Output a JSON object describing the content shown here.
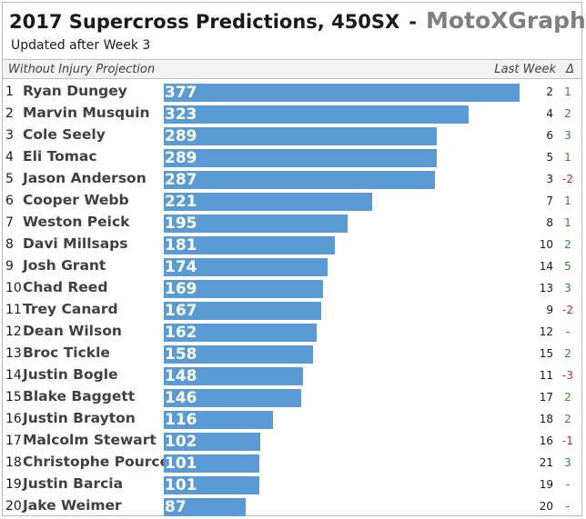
{
  "title": "2017 Supercross Predictions, 450SX",
  "separator": "-",
  "brand": "MotoXGraphs",
  "subtitle": "Updated after Week 3",
  "header": {
    "projection_label": "Without Injury Projection",
    "last_week_label": "Last Week",
    "delta_label": "Δ"
  },
  "colors": {
    "bar": "#5b9bd5",
    "delta_up": "#2e8b2e",
    "delta_down": "#d62020",
    "delta_none": "#555555"
  },
  "chart_data": {
    "type": "bar",
    "orientation": "horizontal",
    "categories": [
      "Ryan Dungey",
      "Marvin Musquin",
      "Cole Seely",
      "Eli Tomac",
      "Jason Anderson",
      "Cooper Webb",
      "Weston Peick",
      "Davi Millsaps",
      "Josh Grant",
      "Chad Reed",
      "Trey Canard",
      "Dean Wilson",
      "Broc Tickle",
      "Justin Bogle",
      "Blake Baggett",
      "Justin Brayton",
      "Malcolm Stewart",
      "Christophe Pourcel",
      "Justin Barcia",
      "Jake Weimer"
    ],
    "values": [
      377,
      323,
      289,
      289,
      287,
      221,
      195,
      181,
      174,
      169,
      167,
      162,
      158,
      148,
      146,
      116,
      102,
      101,
      101,
      87
    ],
    "xlim": [
      0,
      377
    ]
  },
  "rows": [
    {
      "rank": "1",
      "name": "Ryan Dungey",
      "points": "377",
      "last_week": "2",
      "delta": "1"
    },
    {
      "rank": "2",
      "name": "Marvin Musquin",
      "points": "323",
      "last_week": "4",
      "delta": "2"
    },
    {
      "rank": "3",
      "name": "Cole Seely",
      "points": "289",
      "last_week": "6",
      "delta": "3"
    },
    {
      "rank": "4",
      "name": "Eli Tomac",
      "points": "289",
      "last_week": "5",
      "delta": "1"
    },
    {
      "rank": "5",
      "name": "Jason Anderson",
      "points": "287",
      "last_week": "3",
      "delta": "-2"
    },
    {
      "rank": "6",
      "name": "Cooper Webb",
      "points": "221",
      "last_week": "7",
      "delta": "1"
    },
    {
      "rank": "7",
      "name": "Weston Peick",
      "points": "195",
      "last_week": "8",
      "delta": "1"
    },
    {
      "rank": "8",
      "name": "Davi Millsaps",
      "points": "181",
      "last_week": "10",
      "delta": "2"
    },
    {
      "rank": "9",
      "name": "Josh Grant",
      "points": "174",
      "last_week": "14",
      "delta": "5"
    },
    {
      "rank": "10",
      "name": "Chad Reed",
      "points": "169",
      "last_week": "13",
      "delta": "3"
    },
    {
      "rank": "11",
      "name": "Trey Canard",
      "points": "167",
      "last_week": "9",
      "delta": "-2"
    },
    {
      "rank": "12",
      "name": "Dean Wilson",
      "points": "162",
      "last_week": "12",
      "delta": "-"
    },
    {
      "rank": "13",
      "name": "Broc Tickle",
      "points": "158",
      "last_week": "15",
      "delta": "2"
    },
    {
      "rank": "14",
      "name": "Justin Bogle",
      "points": "148",
      "last_week": "11",
      "delta": "-3"
    },
    {
      "rank": "15",
      "name": "Blake Baggett",
      "points": "146",
      "last_week": "17",
      "delta": "2"
    },
    {
      "rank": "16",
      "name": "Justin Brayton",
      "points": "116",
      "last_week": "18",
      "delta": "2"
    },
    {
      "rank": "17",
      "name": "Malcolm Stewart",
      "points": "102",
      "last_week": "16",
      "delta": "-1"
    },
    {
      "rank": "18",
      "name": "Christophe Pourcel",
      "points": "101",
      "last_week": "21",
      "delta": "3"
    },
    {
      "rank": "19",
      "name": "Justin Barcia",
      "points": "101",
      "last_week": "19",
      "delta": "-"
    },
    {
      "rank": "20",
      "name": "Jake Weimer",
      "points": "87",
      "last_week": "20",
      "delta": "-"
    }
  ]
}
